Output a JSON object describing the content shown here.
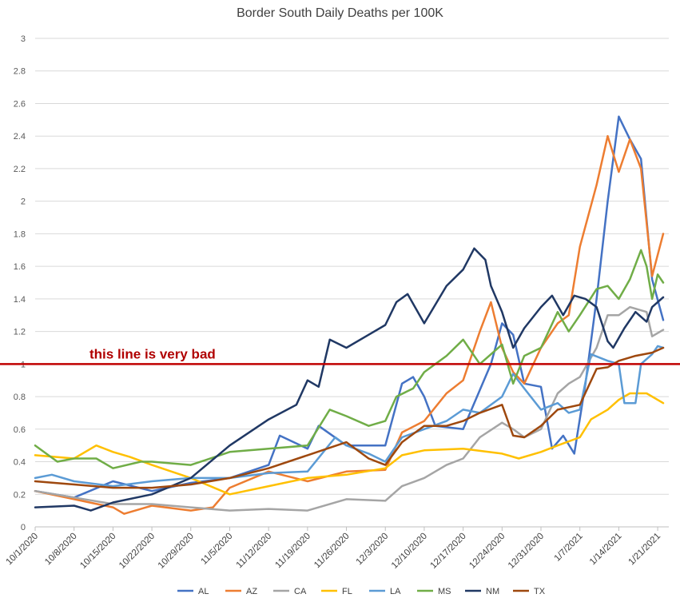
{
  "chart_data": {
    "type": "line",
    "title": "Border South Daily Deaths per 100K",
    "xlabel": "",
    "ylabel": "",
    "ylim": [
      0,
      3
    ],
    "y_ticks": [
      "0",
      "0.2",
      "0.4",
      "0.6",
      "0.8",
      "1",
      "1.2",
      "1.4",
      "1.6",
      "1.8",
      "2",
      "2.2",
      "2.4",
      "2.6",
      "2.8",
      "3"
    ],
    "x_tick_labels": [
      "10/1/2020",
      "10/8/2020",
      "10/15/2020",
      "10/22/2020",
      "10/29/2020",
      "11/5/2020",
      "11/12/2020",
      "11/19/2020",
      "11/26/2020",
      "12/3/2020",
      "12/10/2020",
      "12/17/2020",
      "12/24/2020",
      "12/31/2020",
      "1/7/2021",
      "1/14/2021",
      "1/21/2021"
    ],
    "x_start": "10/1/2020",
    "x_end": "1/23/2021",
    "grid": true,
    "legend_position": "bottom",
    "reference_line": {
      "y": 1,
      "label": "this line is very bad",
      "color": "#c00000"
    },
    "series": [
      {
        "name": "AL",
        "color": "#4472c4",
        "points": [
          [
            "10/1/2020",
            0.22
          ],
          [
            "10/8/2020",
            0.18
          ],
          [
            "10/15/2020",
            0.28
          ],
          [
            "10/22/2020",
            0.22
          ],
          [
            "10/29/2020",
            0.27
          ],
          [
            "11/5/2020",
            0.3
          ],
          [
            "11/12/2020",
            0.38
          ],
          [
            "11/14/2020",
            0.56
          ],
          [
            "11/19/2020",
            0.48
          ],
          [
            "11/21/2020",
            0.62
          ],
          [
            "11/26/2020",
            0.5
          ],
          [
            "12/3/2020",
            0.5
          ],
          [
            "12/6/2020",
            0.88
          ],
          [
            "12/8/2020",
            0.92
          ],
          [
            "12/10/2020",
            0.8
          ],
          [
            "12/12/2020",
            0.62
          ],
          [
            "12/17/2020",
            0.6
          ],
          [
            "12/20/2020",
            0.84
          ],
          [
            "12/22/2020",
            1.0
          ],
          [
            "12/24/2020",
            1.25
          ],
          [
            "12/26/2020",
            1.18
          ],
          [
            "12/28/2020",
            0.88
          ],
          [
            "12/31/2020",
            0.86
          ],
          [
            "1/2/2021",
            0.48
          ],
          [
            "1/4/2021",
            0.56
          ],
          [
            "1/6/2021",
            0.45
          ],
          [
            "1/8/2021",
            0.88
          ],
          [
            "1/10/2021",
            1.4
          ],
          [
            "1/12/2021",
            2.0
          ],
          [
            "1/14/2021",
            2.52
          ],
          [
            "1/16/2021",
            2.38
          ],
          [
            "1/18/2021",
            2.26
          ],
          [
            "1/20/2021",
            1.52
          ],
          [
            "1/22/2021",
            1.27
          ]
        ]
      },
      {
        "name": "AZ",
        "color": "#ed7d31",
        "points": [
          [
            "10/1/2020",
            0.22
          ],
          [
            "10/8/2020",
            0.17
          ],
          [
            "10/15/2020",
            0.12
          ],
          [
            "10/17/2020",
            0.08
          ],
          [
            "10/22/2020",
            0.13
          ],
          [
            "10/29/2020",
            0.1
          ],
          [
            "11/2/2020",
            0.12
          ],
          [
            "11/5/2020",
            0.24
          ],
          [
            "11/12/2020",
            0.34
          ],
          [
            "11/19/2020",
            0.28
          ],
          [
            "11/26/2020",
            0.34
          ],
          [
            "12/3/2020",
            0.35
          ],
          [
            "12/6/2020",
            0.58
          ],
          [
            "12/10/2020",
            0.65
          ],
          [
            "12/14/2020",
            0.82
          ],
          [
            "12/17/2020",
            0.9
          ],
          [
            "12/20/2020",
            1.2
          ],
          [
            "12/22/2020",
            1.38
          ],
          [
            "12/24/2020",
            1.1
          ],
          [
            "12/26/2020",
            0.95
          ],
          [
            "12/28/2020",
            0.88
          ],
          [
            "12/31/2020",
            1.1
          ],
          [
            "1/3/2021",
            1.25
          ],
          [
            "1/5/2021",
            1.3
          ],
          [
            "1/7/2021",
            1.72
          ],
          [
            "1/10/2021",
            2.1
          ],
          [
            "1/12/2021",
            2.4
          ],
          [
            "1/14/2021",
            2.18
          ],
          [
            "1/16/2021",
            2.38
          ],
          [
            "1/18/2021",
            2.2
          ],
          [
            "1/20/2021",
            1.54
          ],
          [
            "1/22/2021",
            1.8
          ]
        ]
      },
      {
        "name": "CA",
        "color": "#a5a5a5",
        "points": [
          [
            "10/1/2020",
            0.22
          ],
          [
            "10/8/2020",
            0.18
          ],
          [
            "10/15/2020",
            0.14
          ],
          [
            "10/22/2020",
            0.14
          ],
          [
            "10/29/2020",
            0.12
          ],
          [
            "11/5/2020",
            0.1
          ],
          [
            "11/12/2020",
            0.11
          ],
          [
            "11/19/2020",
            0.1
          ],
          [
            "11/26/2020",
            0.17
          ],
          [
            "12/3/2020",
            0.16
          ],
          [
            "12/6/2020",
            0.25
          ],
          [
            "12/10/2020",
            0.3
          ],
          [
            "12/14/2020",
            0.38
          ],
          [
            "12/17/2020",
            0.42
          ],
          [
            "12/20/2020",
            0.55
          ],
          [
            "12/24/2020",
            0.64
          ],
          [
            "12/26/2020",
            0.6
          ],
          [
            "12/28/2020",
            0.55
          ],
          [
            "12/31/2020",
            0.6
          ],
          [
            "1/3/2021",
            0.82
          ],
          [
            "1/5/2021",
            0.88
          ],
          [
            "1/7/2021",
            0.92
          ],
          [
            "1/10/2021",
            1.1
          ],
          [
            "1/12/2021",
            1.3
          ],
          [
            "1/14/2021",
            1.3
          ],
          [
            "1/16/2021",
            1.35
          ],
          [
            "1/19/2021",
            1.32
          ],
          [
            "1/20/2021",
            1.17
          ],
          [
            "1/22/2021",
            1.21
          ]
        ]
      },
      {
        "name": "FL",
        "color": "#ffc000",
        "points": [
          [
            "10/1/2020",
            0.44
          ],
          [
            "10/8/2020",
            0.42
          ],
          [
            "10/12/2020",
            0.5
          ],
          [
            "10/15/2020",
            0.46
          ],
          [
            "10/18/2020",
            0.43
          ],
          [
            "10/22/2020",
            0.38
          ],
          [
            "10/29/2020",
            0.3
          ],
          [
            "11/5/2020",
            0.2
          ],
          [
            "11/12/2020",
            0.25
          ],
          [
            "11/19/2020",
            0.3
          ],
          [
            "11/26/2020",
            0.32
          ],
          [
            "12/3/2020",
            0.36
          ],
          [
            "12/6/2020",
            0.44
          ],
          [
            "12/10/2020",
            0.47
          ],
          [
            "12/17/2020",
            0.48
          ],
          [
            "12/24/2020",
            0.45
          ],
          [
            "12/27/2020",
            0.42
          ],
          [
            "12/31/2020",
            0.46
          ],
          [
            "1/3/2021",
            0.5
          ],
          [
            "1/7/2021",
            0.55
          ],
          [
            "1/9/2021",
            0.66
          ],
          [
            "1/12/2021",
            0.72
          ],
          [
            "1/14/2021",
            0.78
          ],
          [
            "1/16/2021",
            0.82
          ],
          [
            "1/19/2021",
            0.82
          ],
          [
            "1/22/2021",
            0.76
          ]
        ]
      },
      {
        "name": "LA",
        "color": "#5b9bd5",
        "points": [
          [
            "10/1/2020",
            0.3
          ],
          [
            "10/4/2020",
            0.32
          ],
          [
            "10/8/2020",
            0.28
          ],
          [
            "10/15/2020",
            0.25
          ],
          [
            "10/22/2020",
            0.28
          ],
          [
            "10/29/2020",
            0.3
          ],
          [
            "11/5/2020",
            0.3
          ],
          [
            "11/12/2020",
            0.33
          ],
          [
            "11/19/2020",
            0.34
          ],
          [
            "11/24/2020",
            0.55
          ],
          [
            "11/26/2020",
            0.5
          ],
          [
            "11/30/2020",
            0.45
          ],
          [
            "12/3/2020",
            0.4
          ],
          [
            "12/6/2020",
            0.55
          ],
          [
            "12/10/2020",
            0.6
          ],
          [
            "12/14/2020",
            0.65
          ],
          [
            "12/17/2020",
            0.72
          ],
          [
            "12/20/2020",
            0.7
          ],
          [
            "12/24/2020",
            0.8
          ],
          [
            "12/26/2020",
            0.94
          ],
          [
            "12/28/2020",
            0.85
          ],
          [
            "12/31/2020",
            0.72
          ],
          [
            "1/3/2021",
            0.76
          ],
          [
            "1/5/2021",
            0.7
          ],
          [
            "1/7/2021",
            0.72
          ],
          [
            "1/9/2021",
            1.06
          ],
          [
            "1/12/2021",
            1.02
          ],
          [
            "1/14/2021",
            1.0
          ],
          [
            "1/15/2021",
            0.76
          ],
          [
            "1/17/2021",
            0.76
          ],
          [
            "1/18/2021",
            1.0
          ],
          [
            "1/20/2021",
            1.06
          ],
          [
            "1/21/2021",
            1.11
          ],
          [
            "1/22/2021",
            1.1
          ]
        ]
      },
      {
        "name": "MS",
        "color": "#70ad47",
        "points": [
          [
            "10/1/2020",
            0.5
          ],
          [
            "10/5/2020",
            0.4
          ],
          [
            "10/8/2020",
            0.42
          ],
          [
            "10/12/2020",
            0.42
          ],
          [
            "10/15/2020",
            0.36
          ],
          [
            "10/20/2020",
            0.4
          ],
          [
            "10/22/2020",
            0.4
          ],
          [
            "10/29/2020",
            0.38
          ],
          [
            "11/5/2020",
            0.46
          ],
          [
            "11/12/2020",
            0.48
          ],
          [
            "11/19/2020",
            0.5
          ],
          [
            "11/23/2020",
            0.72
          ],
          [
            "11/26/2020",
            0.68
          ],
          [
            "11/30/2020",
            0.62
          ],
          [
            "12/3/2020",
            0.65
          ],
          [
            "12/5/2020",
            0.8
          ],
          [
            "12/8/2020",
            0.85
          ],
          [
            "12/10/2020",
            0.95
          ],
          [
            "12/14/2020",
            1.05
          ],
          [
            "12/17/2020",
            1.15
          ],
          [
            "12/20/2020",
            1.0
          ],
          [
            "12/24/2020",
            1.12
          ],
          [
            "12/26/2020",
            0.88
          ],
          [
            "12/28/2020",
            1.05
          ],
          [
            "12/31/2020",
            1.1
          ],
          [
            "1/3/2021",
            1.32
          ],
          [
            "1/5/2021",
            1.2
          ],
          [
            "1/7/2021",
            1.3
          ],
          [
            "1/10/2021",
            1.46
          ],
          [
            "1/12/2021",
            1.48
          ],
          [
            "1/14/2021",
            1.4
          ],
          [
            "1/16/2021",
            1.52
          ],
          [
            "1/18/2021",
            1.7
          ],
          [
            "1/19/2021",
            1.6
          ],
          [
            "1/20/2021",
            1.4
          ],
          [
            "1/21/2021",
            1.55
          ],
          [
            "1/22/2021",
            1.5
          ]
        ]
      },
      {
        "name": "NM",
        "color": "#203864",
        "points": [
          [
            "10/1/2020",
            0.12
          ],
          [
            "10/8/2020",
            0.13
          ],
          [
            "10/11/2020",
            0.1
          ],
          [
            "10/15/2020",
            0.15
          ],
          [
            "10/22/2020",
            0.2
          ],
          [
            "10/29/2020",
            0.3
          ],
          [
            "11/5/2020",
            0.5
          ],
          [
            "11/12/2020",
            0.66
          ],
          [
            "11/17/2020",
            0.75
          ],
          [
            "11/19/2020",
            0.9
          ],
          [
            "11/21/2020",
            0.86
          ],
          [
            "11/23/2020",
            1.15
          ],
          [
            "11/26/2020",
            1.1
          ],
          [
            "11/30/2020",
            1.18
          ],
          [
            "12/3/2020",
            1.24
          ],
          [
            "12/5/2020",
            1.38
          ],
          [
            "12/7/2020",
            1.43
          ],
          [
            "12/10/2020",
            1.25
          ],
          [
            "12/14/2020",
            1.48
          ],
          [
            "12/17/2020",
            1.58
          ],
          [
            "12/19/2020",
            1.71
          ],
          [
            "12/21/2020",
            1.64
          ],
          [
            "12/22/2020",
            1.48
          ],
          [
            "12/24/2020",
            1.32
          ],
          [
            "12/26/2020",
            1.1
          ],
          [
            "12/28/2020",
            1.22
          ],
          [
            "12/31/2020",
            1.35
          ],
          [
            "1/2/2021",
            1.42
          ],
          [
            "1/4/2021",
            1.3
          ],
          [
            "1/6/2021",
            1.42
          ],
          [
            "1/8/2021",
            1.4
          ],
          [
            "1/10/2021",
            1.35
          ],
          [
            "1/12/2021",
            1.14
          ],
          [
            "1/13/2021",
            1.1
          ],
          [
            "1/15/2021",
            1.22
          ],
          [
            "1/17/2021",
            1.32
          ],
          [
            "1/19/2021",
            1.26
          ],
          [
            "1/20/2021",
            1.35
          ],
          [
            "1/22/2021",
            1.41
          ]
        ]
      },
      {
        "name": "TX",
        "color": "#9e480e",
        "points": [
          [
            "10/1/2020",
            0.28
          ],
          [
            "10/8/2020",
            0.26
          ],
          [
            "10/15/2020",
            0.24
          ],
          [
            "10/22/2020",
            0.24
          ],
          [
            "10/29/2020",
            0.26
          ],
          [
            "11/5/2020",
            0.3
          ],
          [
            "11/12/2020",
            0.36
          ],
          [
            "11/19/2020",
            0.44
          ],
          [
            "11/26/2020",
            0.52
          ],
          [
            "11/30/2020",
            0.42
          ],
          [
            "12/3/2020",
            0.38
          ],
          [
            "12/6/2020",
            0.52
          ],
          [
            "12/10/2020",
            0.62
          ],
          [
            "12/14/2020",
            0.62
          ],
          [
            "12/17/2020",
            0.65
          ],
          [
            "12/20/2020",
            0.7
          ],
          [
            "12/24/2020",
            0.75
          ],
          [
            "12/26/2020",
            0.56
          ],
          [
            "12/28/2020",
            0.55
          ],
          [
            "12/31/2020",
            0.62
          ],
          [
            "1/3/2021",
            0.72
          ],
          [
            "1/7/2021",
            0.75
          ],
          [
            "1/10/2021",
            0.97
          ],
          [
            "1/12/2021",
            0.98
          ],
          [
            "1/14/2021",
            1.02
          ],
          [
            "1/17/2021",
            1.05
          ],
          [
            "1/20/2021",
            1.07
          ],
          [
            "1/22/2021",
            1.1
          ]
        ]
      }
    ]
  }
}
